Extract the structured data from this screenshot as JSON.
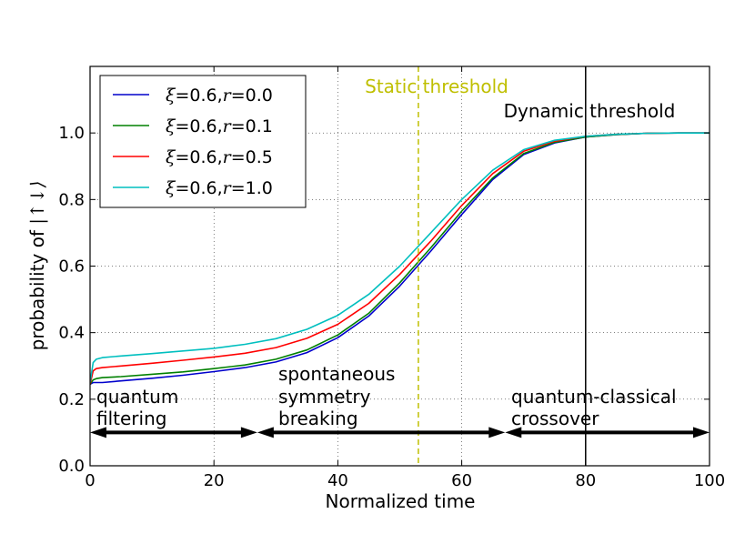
{
  "chart_data": {
    "type": "line",
    "xlabel": "Normalized time",
    "ylabel_prefix": "probability of ",
    "ylabel_ket": "|↑↓⟩",
    "xlim": [
      0,
      100
    ],
    "ylim": [
      0,
      1.2
    ],
    "xticks": [
      0,
      20,
      40,
      60,
      80,
      100
    ],
    "xtick_labels": [
      "0",
      "20",
      "40",
      "60",
      "80",
      "100"
    ],
    "yticks": [
      0.0,
      0.2,
      0.4,
      0.6,
      0.8,
      1.0
    ],
    "ytick_labels": [
      "0.0",
      "0.2",
      "0.4",
      "0.6",
      "0.8",
      "1.0"
    ],
    "grid": true,
    "legend_location": "top-left",
    "series": [
      {
        "name": "ξ=0.6,r=0.0",
        "xi_label": "ξ",
        "eq1": "=0.6,",
        "r_label": "r",
        "eq2": "=0.0",
        "color": "#0000cc",
        "x": [
          0,
          0.5,
          1,
          2,
          5,
          10,
          15,
          20,
          25,
          30,
          35,
          40,
          45,
          50,
          55,
          60,
          65,
          70,
          75,
          80,
          85,
          90,
          95,
          100
        ],
        "y": [
          0.245,
          0.25,
          0.25,
          0.25,
          0.255,
          0.263,
          0.272,
          0.283,
          0.295,
          0.312,
          0.34,
          0.385,
          0.45,
          0.54,
          0.645,
          0.755,
          0.86,
          0.935,
          0.97,
          0.988,
          0.995,
          0.999,
          1.0,
          1.0
        ]
      },
      {
        "name": "ξ=0.6,r=0.1",
        "xi_label": "ξ",
        "eq1": "=0.6,",
        "r_label": "r",
        "eq2": "=0.1",
        "color": "#008000",
        "x": [
          0,
          0.5,
          1,
          2,
          5,
          10,
          15,
          20,
          25,
          30,
          35,
          40,
          45,
          50,
          55,
          60,
          65,
          70,
          75,
          80,
          85,
          90,
          95,
          100
        ],
        "y": [
          0.245,
          0.258,
          0.262,
          0.265,
          0.268,
          0.275,
          0.282,
          0.292,
          0.303,
          0.32,
          0.348,
          0.393,
          0.458,
          0.55,
          0.655,
          0.765,
          0.865,
          0.938,
          0.972,
          0.988,
          0.995,
          0.999,
          1.0,
          1.0
        ]
      },
      {
        "name": "ξ=0.6,r=0.5",
        "xi_label": "ξ",
        "eq1": "=0.6,",
        "r_label": "r",
        "eq2": "=0.5",
        "color": "#ff0000",
        "x": [
          0,
          0.5,
          1,
          2,
          5,
          10,
          15,
          20,
          25,
          30,
          35,
          40,
          45,
          50,
          55,
          60,
          65,
          70,
          75,
          80,
          85,
          90,
          95,
          100
        ],
        "y": [
          0.245,
          0.285,
          0.292,
          0.295,
          0.3,
          0.308,
          0.317,
          0.327,
          0.338,
          0.355,
          0.383,
          0.425,
          0.488,
          0.575,
          0.675,
          0.782,
          0.878,
          0.945,
          0.975,
          0.99,
          0.996,
          0.999,
          1.0,
          1.0
        ]
      },
      {
        "name": "ξ=0.6,r=1.0",
        "xi_label": "ξ",
        "eq1": "=0.6,",
        "r_label": "r",
        "eq2": "=1.0",
        "color": "#00bfbf",
        "x": [
          0,
          0.5,
          1,
          2,
          5,
          10,
          15,
          20,
          25,
          30,
          35,
          40,
          45,
          50,
          55,
          60,
          65,
          70,
          75,
          80,
          85,
          90,
          95,
          100
        ],
        "y": [
          0.25,
          0.31,
          0.32,
          0.325,
          0.33,
          0.337,
          0.345,
          0.353,
          0.365,
          0.382,
          0.41,
          0.452,
          0.515,
          0.6,
          0.7,
          0.8,
          0.888,
          0.95,
          0.978,
          0.99,
          0.996,
          0.999,
          1.0,
          1.0
        ]
      }
    ],
    "vlines": [
      {
        "x": 53,
        "label": "Static threshold",
        "color": "#bfbf00",
        "dashed": true
      },
      {
        "x": 80,
        "label": "Dynamic threshold",
        "color": "#000000",
        "dashed": false
      }
    ],
    "regions": [
      {
        "x0": 0,
        "x1": 27,
        "line1": "quantum",
        "line2": "filtering"
      },
      {
        "x0": 27,
        "x1": 67,
        "line1": "spontaneous",
        "line2": "symmetry",
        "line3": "breaking"
      },
      {
        "x0": 67,
        "x1": 100,
        "line1": "quantum-classical",
        "line2": "crossover"
      }
    ],
    "region_arrow_y": 0.1
  }
}
